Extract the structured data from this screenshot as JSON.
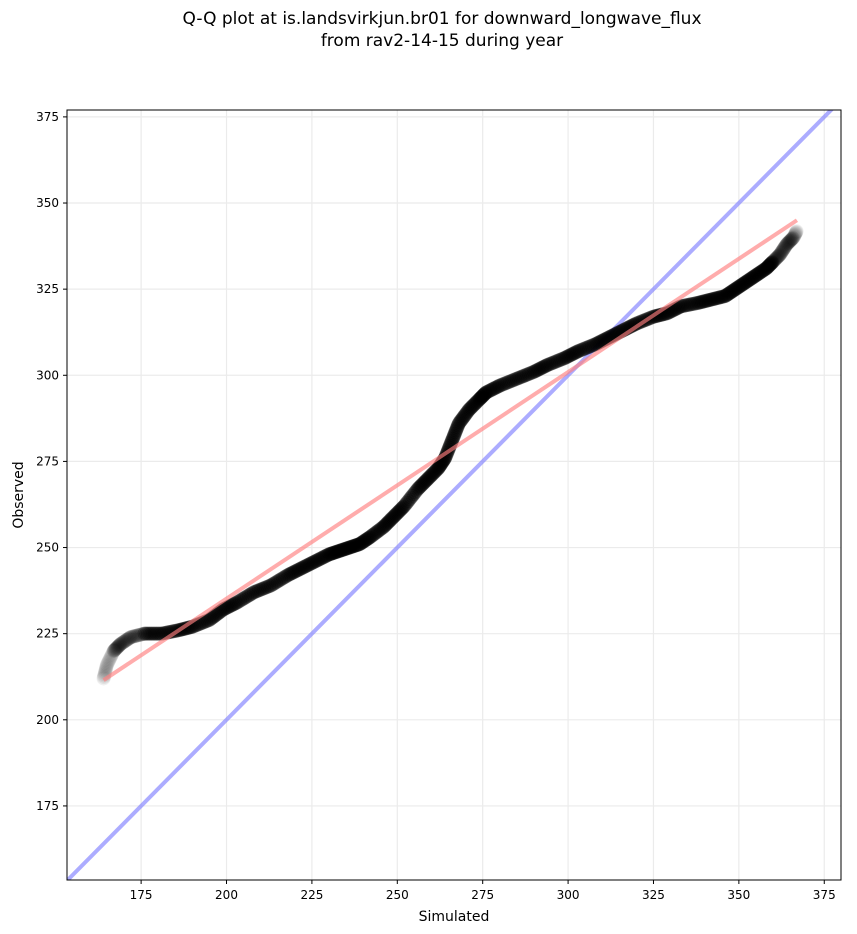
{
  "chart_data": {
    "type": "scatter",
    "title": "Q-Q plot at is.landsvirkjun.br01 for downward_longwave_flux",
    "subtitle": "from rav2-14-15 during year",
    "xlabel": "Simulated",
    "ylabel": "Observed",
    "xlim": [
      153.3,
      379.9
    ],
    "ylim": [
      153.5,
      377
    ],
    "xticks": [
      175,
      200,
      225,
      250,
      275,
      300,
      325,
      350,
      375
    ],
    "yticks": [
      175,
      200,
      225,
      250,
      275,
      300,
      325,
      350,
      375
    ],
    "grid": true,
    "series": [
      {
        "name": "quantiles",
        "color": "#000000",
        "x": [
          164,
          165,
          167,
          169,
          172,
          176,
          181,
          186,
          190,
          195,
          199,
          203,
          208,
          213,
          218,
          222,
          226,
          230,
          233,
          236,
          239,
          242,
          246,
          249,
          252,
          256,
          259,
          262,
          264,
          266,
          268,
          271,
          274,
          276,
          280,
          285,
          290,
          294,
          299,
          303,
          308,
          312,
          316,
          320,
          325,
          329,
          333,
          338,
          342,
          346,
          349,
          352,
          355,
          358,
          360,
          362,
          364,
          366,
          367
        ],
        "y": [
          212,
          216,
          220,
          222,
          224,
          225,
          225,
          226,
          227,
          229,
          232,
          234,
          237,
          239,
          242,
          244,
          246,
          248,
          249,
          250,
          251,
          253,
          256,
          259,
          262,
          267,
          270,
          273,
          276,
          281,
          286,
          290,
          293,
          295,
          297,
          299,
          301,
          303,
          305,
          307,
          309,
          311,
          313,
          315,
          317,
          318,
          320,
          321,
          322,
          323,
          325,
          327,
          329,
          331,
          333,
          335,
          338,
          340,
          342
        ]
      },
      {
        "name": "regression",
        "color": "#ff8080",
        "x": [
          164,
          367
        ],
        "y": [
          211.5,
          345
        ]
      },
      {
        "name": "1:1",
        "color": "#8080ff",
        "x": [
          153.3,
          379.9
        ],
        "y": [
          153.3,
          379.9
        ]
      }
    ]
  }
}
